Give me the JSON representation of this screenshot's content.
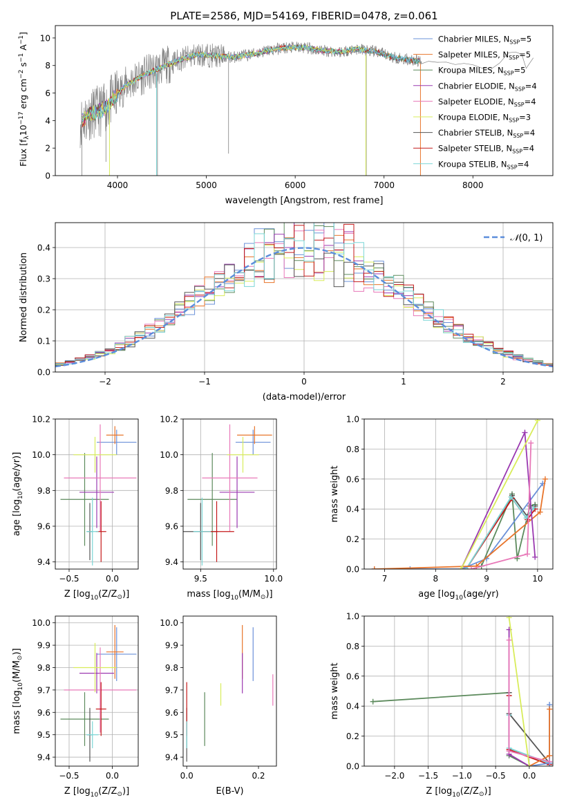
{
  "title": "PLATE=2586, MJD=54169, FIBERID=0478, z=0.061",
  "colors": [
    "#6a90d8",
    "#e8742a",
    "#5c8a5c",
    "#9a38b0",
    "#e878b8",
    "#d8ec5a",
    "#555555",
    "#c41818",
    "#7ad6d6"
  ],
  "chart_data": [
    {
      "id": "spectrum",
      "type": "line",
      "xlabel": "wavelength [Angstrom, rest frame]",
      "ylabel": "Flux [f$_\\lambda$10$^{-17}$ erg cm$^{-2}$ s$^{-1}$ A$^{-1}$]",
      "ylabel_parts": {
        "a": "Flux [f",
        "b": "λ",
        "c": "10",
        "d": "−17",
        "e": " erg cm",
        "f": "−2",
        "g": " s",
        "h": "−1",
        "i": " A",
        "j": "−1",
        "k": "]"
      },
      "xlim": [
        3300,
        8900
      ],
      "ylim": [
        0,
        10.9
      ],
      "xticks": [
        4000,
        5000,
        6000,
        7000,
        8000
      ],
      "yticks": [
        0,
        2,
        4,
        6,
        8,
        10
      ],
      "grid": false,
      "legend": "right",
      "continuum": {
        "x": [
          3580,
          3700,
          3850,
          3950,
          4100,
          4300,
          4500,
          4700,
          4900,
          5100,
          5300,
          5500,
          5700,
          5900,
          6100,
          6300,
          6500,
          6700,
          6900,
          7100,
          7300,
          7420
        ],
        "y": [
          3.9,
          4.5,
          4.8,
          5.6,
          6.6,
          7.3,
          7.9,
          8.4,
          8.8,
          8.7,
          8.6,
          8.8,
          9.1,
          9.3,
          9.3,
          9.1,
          9.0,
          9.2,
          9.0,
          8.6,
          8.4,
          8.3
        ]
      },
      "observed_tail": {
        "x": [
          7420,
          7500,
          7600,
          7700,
          7800,
          7900,
          8000,
          8100,
          8200,
          8300,
          8400,
          8480,
          8550,
          8600,
          8680
        ],
        "y": [
          8.3,
          8.4,
          8.4,
          8.3,
          8.2,
          8.0,
          8.2,
          8.0,
          7.9,
          8.1,
          8.8,
          9.2,
          8.6,
          7.8,
          8.7
        ]
      },
      "series": [
        {
          "name": "Chabrier MILES, N$_{SSP}$=5",
          "label": {
            "pre": "Chabrier MILES, N",
            "sub": "SSP",
            "post": "=5"
          },
          "end": 7410
        },
        {
          "name": "Salpeter MILES, N$_{SSP}$=5",
          "label": {
            "pre": "Salpeter MILES, N",
            "sub": "SSP",
            "post": "=5"
          },
          "end": 7410
        },
        {
          "name": "Kroupa MILES, N$_{SSP}$=5",
          "label": {
            "pre": "Kroupa MILES, N",
            "sub": "SSP",
            "post": "=5"
          },
          "end": 7410
        },
        {
          "name": "Chabrier ELODIE, N$_{SSP}$=4",
          "label": {
            "pre": "Chabrier ELODIE, N",
            "sub": "SSP",
            "post": "=4"
          },
          "end": 6780
        },
        {
          "name": "Salpeter ELODIE, N$_{SSP}$=4",
          "label": {
            "pre": "Salpeter ELODIE, N",
            "sub": "SSP",
            "post": "=4"
          },
          "end": 6780
        },
        {
          "name": "Kroupa ELODIE, N$_{SSP}$=3",
          "label": {
            "pre": "Kroupa ELODIE, N",
            "sub": "SSP",
            "post": "=3"
          },
          "end": 6780
        },
        {
          "name": "Chabrier STELIB, N$_{SSP}$=4",
          "label": {
            "pre": "Chabrier STELIB, N",
            "sub": "SSP",
            "post": "=4"
          },
          "end": 7410
        },
        {
          "name": "Salpeter STELIB, N$_{SSP}$=4",
          "label": {
            "pre": "Salpeter STELIB, N",
            "sub": "SSP",
            "post": "=4"
          },
          "end": 7410
        },
        {
          "name": "Kroupa STELIB, N$_{SSP}$=4",
          "label": {
            "pre": "Kroupa STELIB, N",
            "sub": "SSP",
            "post": "=4"
          },
          "end": 7410
        }
      ]
    },
    {
      "id": "residuals",
      "type": "histogram",
      "xlabel": "(data-model)/error",
      "ylabel": "Normed distribution",
      "xlim": [
        -2.5,
        2.5
      ],
      "ylim": [
        0,
        0.48
      ],
      "xticks": [
        -2,
        -1,
        0,
        1,
        2
      ],
      "yticks": [
        0.0,
        0.1,
        0.2,
        0.3,
        0.4
      ],
      "grid": true,
      "legend": "top-right",
      "bin_width": 0.1,
      "reference": {
        "name": "$\\mathcal{N}(0,1)$",
        "label_main": "𝒩",
        "label_rest": "(0, 1)",
        "mean": 0,
        "sigma": 1
      }
    },
    {
      "id": "age_vs_z",
      "type": "errorbar",
      "xlabel": "Z [log$_{10}$($Z/Z_\\odot$)]",
      "xlabel_parts": {
        "pre": "Z [log",
        "sub": "10",
        "post": "(Z/Z",
        "sub2": "⊙",
        "end": ")]"
      },
      "ylabel": "age  [log$_{10}$($age/yr$)]",
      "ylabel_parts": {
        "pre": "age  [log",
        "sub": "10",
        "post": "(age/yr)]"
      },
      "xlim": [
        -0.66,
        0.3
      ],
      "ylim": [
        9.36,
        10.2
      ],
      "xticks": [
        -0.5,
        0.0
      ],
      "yticks": [
        9.4,
        9.6,
        9.8,
        10.0,
        10.2
      ],
      "grid": true,
      "points": [
        {
          "x": 0.05,
          "xerr": 0.23,
          "y": 10.07,
          "yerr": 0.07
        },
        {
          "x": 0.03,
          "xerr": 0.1,
          "y": 10.11,
          "yerr": 0.05
        },
        {
          "x": -0.32,
          "xerr": 0.28,
          "y": 9.75,
          "yerr": 0.26
        },
        {
          "x": -0.18,
          "xerr": 0.2,
          "y": 9.79,
          "yerr": 0.2
        },
        {
          "x": -0.14,
          "xerr": 0.42,
          "y": 9.87,
          "yerr": 0.3
        },
        {
          "x": -0.2,
          "xerr": 0.25,
          "y": 10.0,
          "yerr": 0.1
        },
        {
          "x": -0.26,
          "xerr": 0.03,
          "y": 9.57,
          "yerr": 0.16
        },
        {
          "x": -0.13,
          "xerr": 0.06,
          "y": 9.57,
          "yerr": 0.17
        },
        {
          "x": -0.23,
          "xerr": 0.07,
          "y": 9.57,
          "yerr": 0.19
        }
      ]
    },
    {
      "id": "age_vs_mass",
      "type": "errorbar",
      "xlabel": "mass [log$_{10}$($M/M_\\odot$)]",
      "xlabel_parts": {
        "pre": "mass [log",
        "sub": "10",
        "post": "(M/M",
        "sub2": "⊙",
        "end": ")]"
      },
      "xlim": [
        9.38,
        10.02
      ],
      "ylim": [
        9.36,
        10.2
      ],
      "xticks": [
        9.5,
        10.0
      ],
      "yticks": [
        9.4,
        9.6,
        9.8,
        10.0,
        10.2
      ],
      "grid": true,
      "points": [
        {
          "x": 9.86,
          "xerr": 0.12,
          "y": 10.07,
          "yerr": 0.07
        },
        {
          "x": 9.87,
          "xerr": 0.12,
          "y": 10.11,
          "yerr": 0.05
        },
        {
          "x": 9.58,
          "xerr": 0.17,
          "y": 9.75,
          "yerr": 0.26
        },
        {
          "x": 9.75,
          "xerr": 0.12,
          "y": 9.79,
          "yerr": 0.2
        },
        {
          "x": 9.7,
          "xerr": 0.19,
          "y": 9.87,
          "yerr": 0.3
        },
        {
          "x": 9.79,
          "xerr": 0.11,
          "y": 10.0,
          "yerr": 0.1
        },
        {
          "x": 9.5,
          "xerr": 0.12,
          "y": 9.57,
          "yerr": 0.16
        },
        {
          "x": 9.61,
          "xerr": 0.12,
          "y": 9.57,
          "yerr": 0.17
        },
        {
          "x": 9.51,
          "xerr": 0.06,
          "y": 9.57,
          "yerr": 0.19
        }
      ]
    },
    {
      "id": "weight_vs_age",
      "type": "line",
      "xlabel": "age  [log$_{10}$($age/yr$)]",
      "xlabel_parts": {
        "pre": "age  [log",
        "sub": "10",
        "post": "(age/yr)"
      },
      "ylabel": "mass weight",
      "xlim": [
        6.6,
        10.3
      ],
      "ylim": [
        0,
        1.0
      ],
      "xticks": [
        7,
        8,
        9,
        10
      ],
      "yticks": [
        0.0,
        0.2,
        0.4,
        0.6,
        0.8,
        1.0
      ],
      "grid": true,
      "series": [
        {
          "x": [
            6.8,
            7.5,
            8.5,
            9.0,
            10.1
          ],
          "y": [
            0,
            0,
            0,
            0.07,
            0.57
          ]
        },
        {
          "x": [
            6.8,
            8.8,
            10.05,
            10.15
          ],
          "y": [
            0,
            0.02,
            0.38,
            0.6
          ]
        },
        {
          "x": [
            8.9,
            9.5,
            9.6,
            9.85,
            9.95
          ],
          "y": [
            0.02,
            0.5,
            0.07,
            0.42,
            0.43
          ]
        },
        {
          "x": [
            8.5,
            9.75,
            9.95
          ],
          "y": [
            0,
            0.91,
            0.08
          ]
        },
        {
          "x": [
            8.7,
            9.8,
            9.87
          ],
          "y": [
            0,
            0.1,
            0.84
          ]
        },
        {
          "x": [
            8.5,
            10.0
          ],
          "y": [
            0,
            0.99
          ]
        },
        {
          "x": [
            8.6,
            9.5,
            9.8,
            9.95
          ],
          "y": [
            0,
            0.49,
            0.35,
            0.42
          ]
        },
        {
          "x": [
            8.6,
            9.5,
            9.8,
            9.95
          ],
          "y": [
            0,
            0.47,
            0.33,
            0.4
          ]
        },
        {
          "x": [
            8.6,
            9.48,
            9.78,
            9.93
          ],
          "y": [
            0,
            0.48,
            0.34,
            0.41
          ]
        }
      ]
    },
    {
      "id": "mass_vs_z",
      "type": "errorbar",
      "xlabel": "Z [log$_{10}$($Z/Z_\\odot$)]",
      "xlabel_parts": {
        "pre": "Z [log",
        "sub": "10",
        "post": "(Z/Z",
        "sub2": "⊙",
        "end": ")]"
      },
      "ylabel": "mass [log$_{10}$($M/M_\\odot$)]",
      "ylabel_parts": {
        "pre": "mass [log",
        "sub": "10",
        "post": "(M/M",
        "sub2": "⊙",
        "end": ")]"
      },
      "xlim": [
        -0.66,
        0.3
      ],
      "ylim": [
        9.36,
        10.03
      ],
      "xticks": [
        -0.5,
        0.0
      ],
      "yticks": [
        9.4,
        9.5,
        9.6,
        9.7,
        9.8,
        9.9,
        10.0
      ],
      "grid": true,
      "points": [
        {
          "x": 0.05,
          "xerr": 0.23,
          "y": 9.86,
          "yerr": 0.12
        },
        {
          "x": 0.03,
          "xerr": 0.1,
          "y": 9.87,
          "yerr": 0.12
        },
        {
          "x": -0.32,
          "xerr": 0.28,
          "y": 9.57,
          "yerr": 0.12
        },
        {
          "x": -0.18,
          "xerr": 0.2,
          "y": 9.775,
          "yerr": 0.09
        },
        {
          "x": -0.14,
          "xerr": 0.42,
          "y": 9.7,
          "yerr": 0.19
        },
        {
          "x": -0.2,
          "xerr": 0.25,
          "y": 9.8,
          "yerr": 0.11
        },
        {
          "x": -0.26,
          "xerr": 0.03,
          "y": 9.5,
          "yerr": 0.12
        },
        {
          "x": -0.13,
          "xerr": 0.06,
          "y": 9.615,
          "yerr": 0.12
        },
        {
          "x": -0.23,
          "xerr": 0.07,
          "y": 9.5,
          "yerr": 0.06
        }
      ]
    },
    {
      "id": "mass_vs_ebv",
      "type": "errorbar",
      "xlabel": "E(B-V)",
      "xlim": [
        -0.01,
        0.25
      ],
      "ylim": [
        9.36,
        10.03
      ],
      "xticks": [
        0.0,
        0.2
      ],
      "yticks": [
        9.4,
        9.5,
        9.6,
        9.7,
        9.8,
        9.9,
        10.0
      ],
      "grid": false,
      "points": [
        {
          "x": 0.185,
          "y": 9.86,
          "yerr": 0.12
        },
        {
          "x": 0.155,
          "y": 9.87,
          "yerr": 0.12
        },
        {
          "x": 0.05,
          "y": 9.57,
          "yerr": 0.12
        },
        {
          "x": 0.155,
          "y": 9.775,
          "yerr": 0.09
        },
        {
          "x": 0.24,
          "y": 9.7,
          "yerr": 0.07
        },
        {
          "x": 0.095,
          "y": 9.68,
          "yerr": 0.05
        },
        {
          "x": 0.0,
          "y": 9.5,
          "yerr": 0.12
        },
        {
          "x": 0.0,
          "y": 9.615,
          "yerr": 0.12
        },
        {
          "x": 0.0,
          "y": 9.5,
          "yerr": 0.06
        }
      ]
    },
    {
      "id": "weight_vs_z",
      "type": "line",
      "xlabel": "Z [log$_{10}$($Z/Z_\\odot$)]",
      "xlabel_parts": {
        "pre": "Z [log",
        "sub": "10",
        "post": "(Z/Z",
        "sub2": "⊙",
        "end": ")]"
      },
      "ylabel": "mass weight",
      "xlim": [
        -2.45,
        0.35
      ],
      "ylim": [
        0,
        1.0
      ],
      "xticks": [
        -2.0,
        -1.5,
        -1.0,
        -0.5,
        0.0
      ],
      "yticks": [
        0.0,
        0.2,
        0.4,
        0.6,
        0.8,
        1.0
      ],
      "grid": true,
      "series": [
        {
          "x": [
            0.0,
            0.3,
            0.3
          ],
          "y": [
            0.0,
            0.02,
            0.41
          ]
        },
        {
          "x": [
            0.0,
            0.3,
            0.3
          ],
          "y": [
            0.0,
            0.07,
            0.38
          ]
        },
        {
          "x": [
            -2.32,
            -0.3,
            -0.3,
            0.0
          ],
          "y": [
            0.43,
            0.49,
            0.07,
            0.0
          ]
        },
        {
          "x": [
            -0.3,
            -0.3,
            0.0
          ],
          "y": [
            0.91,
            0.08,
            0.0
          ]
        },
        {
          "x": [
            -0.3,
            -0.3,
            0.3
          ],
          "y": [
            0.84,
            0.1,
            0.03
          ]
        },
        {
          "x": [
            -0.3,
            0.0
          ],
          "y": [
            0.99,
            0.0
          ]
        },
        {
          "x": [
            -0.3,
            -0.3,
            0.3
          ],
          "y": [
            0.49,
            0.35,
            0.02
          ]
        },
        {
          "x": [
            -0.3,
            -0.3,
            0.3
          ],
          "y": [
            0.47,
            0.11,
            0.01
          ]
        },
        {
          "x": [
            -0.3,
            -0.3,
            0.3
          ],
          "y": [
            0.34,
            0.12,
            0.02
          ]
        }
      ]
    }
  ]
}
